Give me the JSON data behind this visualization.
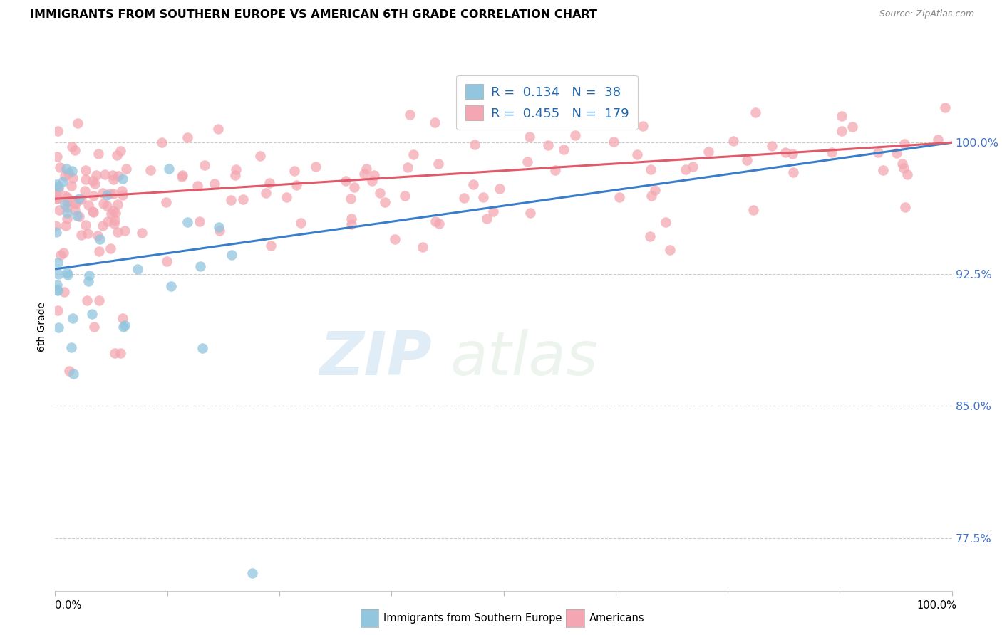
{
  "title": "IMMIGRANTS FROM SOUTHERN EUROPE VS AMERICAN 6TH GRADE CORRELATION CHART",
  "source": "Source: ZipAtlas.com",
  "ylabel": "6th Grade",
  "yticks": [
    0.775,
    0.85,
    0.925,
    1.0
  ],
  "ytick_labels": [
    "77.5%",
    "85.0%",
    "92.5%",
    "100.0%"
  ],
  "xtick_labels": [
    "0.0%",
    "100.0%"
  ],
  "xmin": 0.0,
  "xmax": 1.0,
  "ymin": 0.745,
  "ymax": 1.045,
  "blue_R": 0.134,
  "blue_N": 38,
  "pink_R": 0.455,
  "pink_N": 179,
  "blue_color": "#92c5de",
  "pink_color": "#f4a7b2",
  "blue_line_color": "#3a7dc9",
  "pink_line_color": "#e05a6a",
  "legend_label_blue": "Immigrants from Southern Europe",
  "legend_label_pink": "Americans",
  "watermark_zip": "ZIP",
  "watermark_atlas": "atlas",
  "blue_trend_x0": 0.0,
  "blue_trend_y0": 0.928,
  "blue_trend_x1": 1.0,
  "blue_trend_y1": 1.0,
  "pink_trend_x0": 0.0,
  "pink_trend_y0": 0.968,
  "pink_trend_x1": 1.0,
  "pink_trend_y1": 1.0
}
